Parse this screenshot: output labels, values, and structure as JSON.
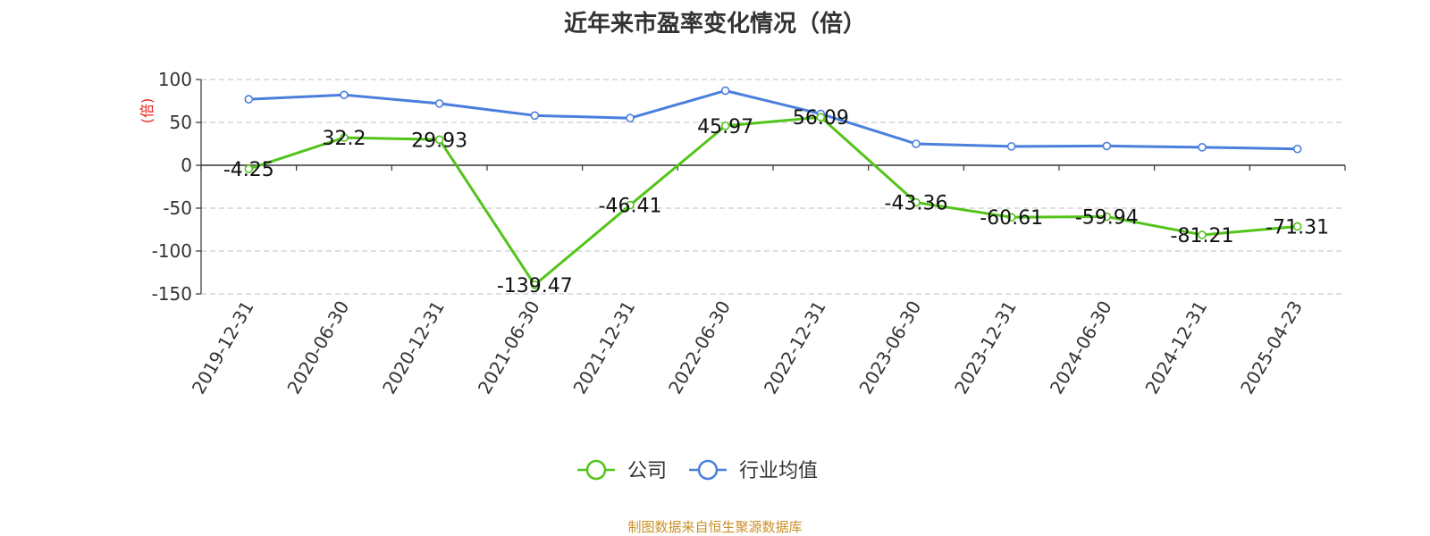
{
  "chart_data": {
    "type": "line",
    "title": "近年来市盈率变化情况（倍）",
    "ylabel": "(倍)",
    "xlabel": "",
    "categories": [
      "2019-12-31",
      "2020-06-30",
      "2020-12-31",
      "2021-06-30",
      "2021-12-31",
      "2022-06-30",
      "2022-12-31",
      "2023-06-30",
      "2023-12-31",
      "2024-06-30",
      "2024-12-31",
      "2025-04-23"
    ],
    "ylim": [
      -150,
      100
    ],
    "yticks": [
      "100",
      "50",
      "0",
      "-50",
      "-100",
      "-150"
    ],
    "grid": true,
    "legend_position": "bottom",
    "series": [
      {
        "name": "公司",
        "color": "#52c41a",
        "values": [
          -4.25,
          32.2,
          29.93,
          -139.47,
          -46.41,
          45.97,
          56.09,
          -43.36,
          -60.61,
          -59.94,
          -81.21,
          -71.31
        ],
        "labels": [
          "-4.25",
          "32.2",
          "29.93",
          "-139.47",
          "-46.41",
          "45.97",
          "56.09",
          "-43.36",
          "-60.61",
          "-59.94",
          "-81.21",
          "-71.31"
        ]
      },
      {
        "name": "行业均值",
        "color": "#4a7fdc",
        "values": [
          77,
          82,
          72,
          58,
          55,
          87,
          60,
          25,
          22,
          22.5,
          21,
          19
        ]
      }
    ]
  },
  "source_text": "制图数据来自恒生聚源数据库",
  "colors": {
    "title": "#333333",
    "ylabel": "#e8201a",
    "source": "#c8902a",
    "axis": "#333333",
    "grid": "#cccccc"
  }
}
